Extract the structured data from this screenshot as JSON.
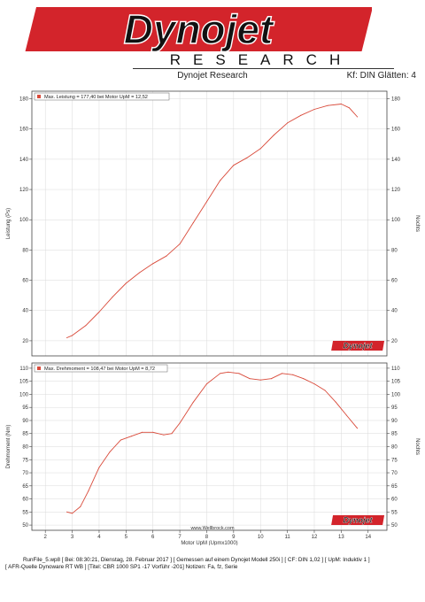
{
  "logo": {
    "wordmark": "Dynojet",
    "sub": "RESEARCH"
  },
  "header": {
    "title": "Dynojet Research",
    "correction": "Kf: DIN  Glätten: 4"
  },
  "footer": {
    "website": "www.Wellbrock.com",
    "line1": "RunFile_5.wp8 [ Bei: 08:30:21, Dienstag, 28. Februar 2017 ] [ Gemessen auf einem Dynojet Modell 250i ] [ CF: DIN 1,02 ] [ UpM: Induktiv 1 ]",
    "line2": "[ AFR-Quelle  Dynoware RT WB ] [Titel: CBR 1000 SP1  -17  Vorführ -201]  Notizen: Fa, fz, Serie"
  },
  "badge_text": "Dynojet",
  "colors": {
    "curve": "#d94a3a",
    "legend_marker": "#d94a3a",
    "logo_red": "#d3242b",
    "grid": "#dadada"
  },
  "chart_data": [
    {
      "type": "line",
      "ylabel": "Leistung (Ps)",
      "y2label": "Nochts",
      "ylim": [
        10,
        185
      ],
      "yticks": [
        "20",
        "40",
        "60",
        "80",
        "100",
        "120",
        "140",
        "160",
        "180"
      ],
      "legend": "Max. Leistung = 177,40 bei Motor UpM = 12,52",
      "series": [
        {
          "x": [
            2.8,
            3.0,
            3.5,
            4.0,
            4.5,
            5.0,
            5.5,
            6.0,
            6.5,
            7.0,
            7.5,
            8.0,
            8.5,
            9.0,
            9.5,
            10.0,
            10.5,
            11.0,
            11.5,
            12.0,
            12.5,
            13.0,
            13.3,
            13.6
          ],
          "y": [
            22,
            23.5,
            30,
            39,
            49,
            58,
            65,
            71,
            76,
            84,
            98,
            112,
            126,
            136,
            141,
            147,
            156,
            164,
            169,
            173,
            175.5,
            176.5,
            174,
            168
          ]
        }
      ]
    },
    {
      "type": "line",
      "ylabel": "Drehmoment (Nm)",
      "y2label": "Nochts",
      "xlabel": "Motor UpM (Upmx1000)",
      "xlim": [
        1.5,
        14.7
      ],
      "xticks": [
        "2",
        "3",
        "4",
        "5",
        "6",
        "7",
        "8",
        "9",
        "10",
        "11",
        "12",
        "13",
        "14"
      ],
      "ylim": [
        48,
        112
      ],
      "yticks": [
        "50",
        "55",
        "60",
        "65",
        "70",
        "75",
        "80",
        "85",
        "90",
        "95",
        "100",
        "105",
        "110"
      ],
      "legend": "Max. Drehmoment = 108,47 bei Motor UpM = 8,72",
      "series": [
        {
          "x": [
            2.8,
            3.0,
            3.3,
            3.6,
            4.0,
            4.4,
            4.8,
            5.2,
            5.6,
            6.0,
            6.4,
            6.7,
            7.0,
            7.5,
            8.0,
            8.5,
            8.8,
            9.2,
            9.6,
            10.0,
            10.4,
            10.8,
            11.2,
            11.6,
            12.0,
            12.4,
            12.8,
            13.2,
            13.6
          ],
          "y": [
            55,
            54.5,
            57,
            63,
            72,
            78,
            82.5,
            84,
            85.5,
            85.5,
            84.5,
            85,
            89,
            97,
            104,
            108,
            108.5,
            108,
            106,
            105.5,
            106,
            108,
            107.5,
            106,
            104,
            101.5,
            97,
            92,
            87
          ]
        }
      ]
    }
  ]
}
